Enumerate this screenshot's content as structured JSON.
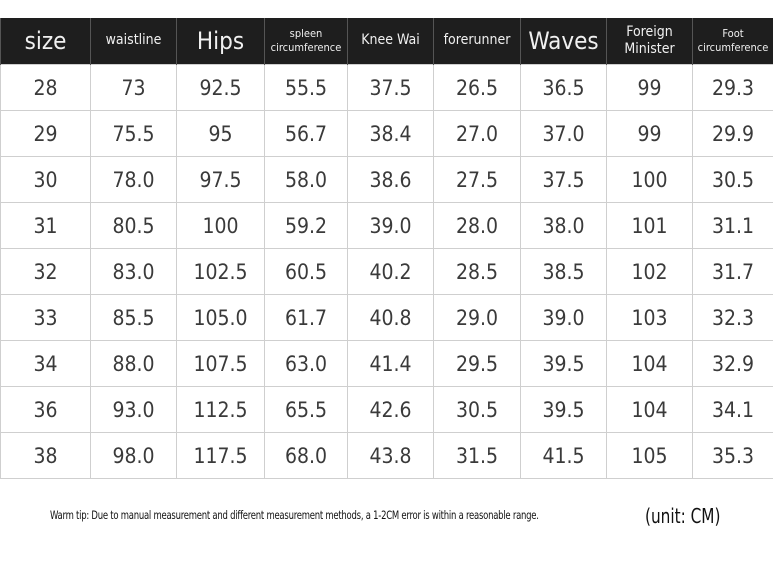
{
  "table": {
    "headers": [
      "size",
      "waistline",
      "Hips",
      "spleen circumference",
      "Knee Wai",
      "forerunner",
      "Waves",
      "Foreign Minister",
      "Foot circumference"
    ],
    "rows": [
      [
        "28",
        "73",
        "92.5",
        "55.5",
        "37.5",
        "26.5",
        "36.5",
        "99",
        "29.3"
      ],
      [
        "29",
        "75.5",
        "95",
        "56.7",
        "38.4",
        "27.0",
        "37.0",
        "99",
        "29.9"
      ],
      [
        "30",
        "78.0",
        "97.5",
        "58.0",
        "38.6",
        "27.5",
        "37.5",
        "100",
        "30.5"
      ],
      [
        "31",
        "80.5",
        "100",
        "59.2",
        "39.0",
        "28.0",
        "38.0",
        "101",
        "31.1"
      ],
      [
        "32",
        "83.0",
        "102.5",
        "60.5",
        "40.2",
        "28.5",
        "38.5",
        "102",
        "31.7"
      ],
      [
        "33",
        "85.5",
        "105.0",
        "61.7",
        "40.8",
        "29.0",
        "39.0",
        "103",
        "32.3"
      ],
      [
        "34",
        "88.0",
        "107.5",
        "63.0",
        "41.4",
        "29.5",
        "39.5",
        "104",
        "32.9"
      ],
      [
        "36",
        "93.0",
        "112.5",
        "65.5",
        "42.6",
        "30.5",
        "39.5",
        "104",
        "34.1"
      ],
      [
        "38",
        "98.0",
        "117.5",
        "68.0",
        "43.8",
        "31.5",
        "41.5",
        "105",
        "35.3"
      ]
    ]
  },
  "footer": {
    "tip": "Warm tip: Due to manual measurement and different measurement methods, a 1-2CM error is within a reasonable range.",
    "unit": "(unit: CM)"
  },
  "colors": {
    "header_bg": "#1e1e1e",
    "header_text": "#f0f0f0",
    "cell_text": "#3a3a3a",
    "grid": "#cfcfcf"
  }
}
